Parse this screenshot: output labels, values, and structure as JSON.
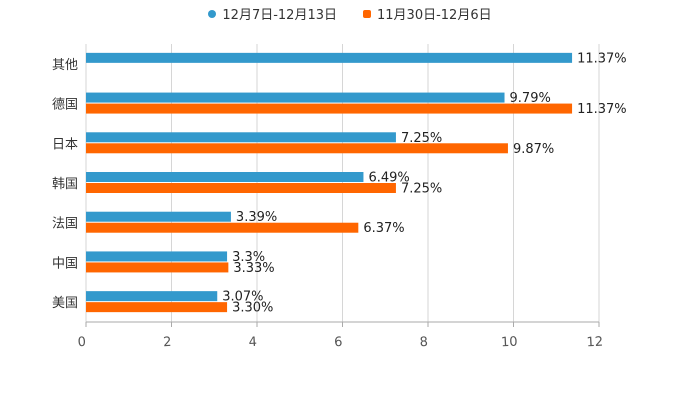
{
  "chart_data": {
    "type": "bar",
    "orientation": "horizontal",
    "categories": [
      "其他",
      "德国",
      "日本",
      "韩国",
      "法国",
      "中国",
      "美国"
    ],
    "series": [
      {
        "name": "12月7日-12月13日",
        "color": "#3399cc",
        "values": [
          11.37,
          9.79,
          7.25,
          6.49,
          3.39,
          3.3,
          3.07
        ],
        "labels": [
          "11.37%",
          "9.79%",
          "7.25%",
          "6.49%",
          "3.39%",
          "3.3%",
          "3.07%"
        ]
      },
      {
        "name": "11月30日-12月6日",
        "color": "#ff6600",
        "values": [
          null,
          11.37,
          9.87,
          7.25,
          6.37,
          3.33,
          3.3
        ],
        "labels": [
          "",
          "11.37%",
          "9.87%",
          "7.25%",
          "6.37%",
          "3.33%",
          "3.30%"
        ]
      }
    ],
    "xlim": [
      0,
      12
    ],
    "xticks": [
      0,
      2,
      4,
      6,
      8,
      10,
      12
    ],
    "grid": true,
    "legend_position": "top-center",
    "title": "",
    "xlabel": "",
    "ylabel": ""
  }
}
